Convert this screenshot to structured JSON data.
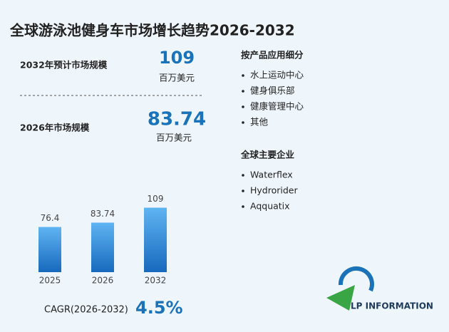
{
  "title": "全球游泳池健身车市场增长趋势2026-2032",
  "stats": [
    {
      "label": "2032年预计市场规模",
      "value": 109,
      "unit": "百万美元"
    },
    {
      "label": "2026年市场规模",
      "value": 83.74,
      "unit": "百万美元"
    }
  ],
  "segments": {
    "title": "按产品应用细分",
    "items": [
      "水上运动中心",
      "健身俱乐部",
      "健康管理中心",
      "其他"
    ]
  },
  "companies": {
    "title": "全球主要企业",
    "items": [
      "Waterflex",
      "Hydrorider",
      "Aqquatix"
    ]
  },
  "cagr": {
    "label": "CAGR(2026-2032)",
    "value": "4.5%"
  },
  "logo": "LP INFORMATION",
  "chart_data": {
    "type": "bar",
    "categories": [
      "2025",
      "2026",
      "2032"
    ],
    "values": [
      76.4,
      83.74,
      109
    ]
  }
}
